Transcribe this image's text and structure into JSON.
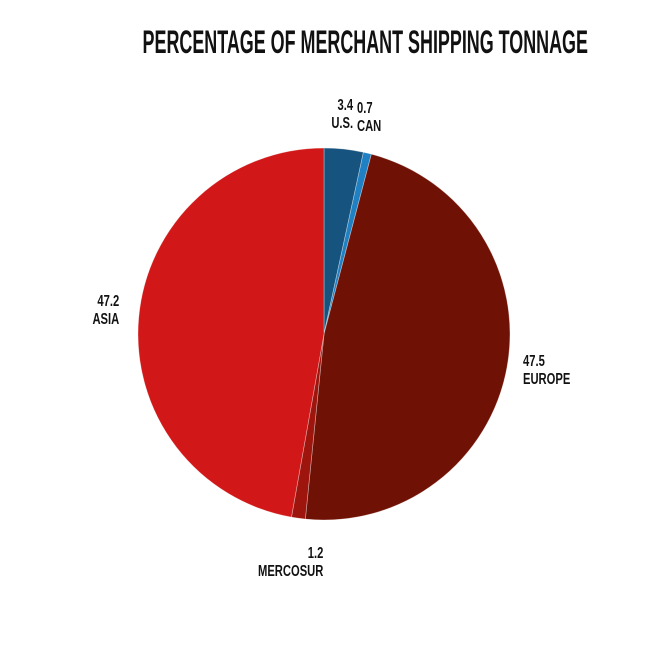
{
  "title": "PERCENTAGE OF MERCHANT SHIPPING TONNAGE",
  "colors": {
    "background": "#ffffff",
    "text": "#121212",
    "us_blue": "#16537e",
    "can_blue": "#1f80c3",
    "europe_maroon": "#6f1104",
    "mercosur_red": "#9e150e",
    "asia_red": "#d11717"
  },
  "chart_data": {
    "type": "pie",
    "title": "PERCENTAGE OF MERCHANT SHIPPING TONNAGE",
    "unit": "percent",
    "start_angle": "12-oclock",
    "direction": "clockwise",
    "legend": "none",
    "labels_position": "outside, value above region name",
    "slices": [
      {
        "label": "U.S.",
        "value": 3.4,
        "value_text": "3.4",
        "color": "#16537e"
      },
      {
        "label": "CAN",
        "value": 0.7,
        "value_text": "0.7",
        "color": "#1f80c3"
      },
      {
        "label": "EUROPE",
        "value": 47.5,
        "value_text": "47.5",
        "color": "#6f1104"
      },
      {
        "label": "MERCOSUR",
        "value": 1.2,
        "value_text": "1.2",
        "color": "#9e150e"
      },
      {
        "label": "ASIA",
        "value": 47.2,
        "value_text": "47.2",
        "color": "#d11717"
      }
    ]
  }
}
